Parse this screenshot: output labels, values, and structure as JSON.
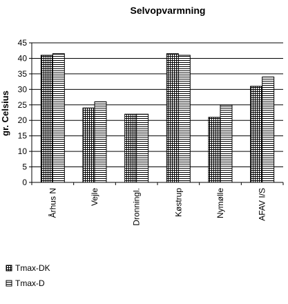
{
  "chart_data": {
    "type": "bar",
    "title": "Selvopvarmning",
    "ylabel": "gr. Celsius",
    "xlabel": "",
    "ylim": [
      0,
      45
    ],
    "ytick_step": 5,
    "yticks": [
      "0",
      "5",
      "10",
      "15",
      "20",
      "25",
      "30",
      "35",
      "40",
      "45"
    ],
    "grid": true,
    "categories": [
      "Århus N",
      "Vejle",
      "Dronningl.",
      "Køstrup",
      "Nymølle",
      "AFAV I/S"
    ],
    "series": [
      {
        "name": "Tmax-DK",
        "values": [
          41,
          24,
          22,
          41.5,
          21,
          31
        ],
        "pattern": "grid"
      },
      {
        "name": "Tmax-D",
        "values": [
          41.5,
          26,
          22,
          41,
          25,
          34
        ],
        "pattern": "hlines"
      }
    ],
    "legend_position": "bottom-left",
    "colors": {
      "bar_fill": "#ffffff",
      "bar_line": "#000000",
      "grid": "#000000"
    }
  }
}
